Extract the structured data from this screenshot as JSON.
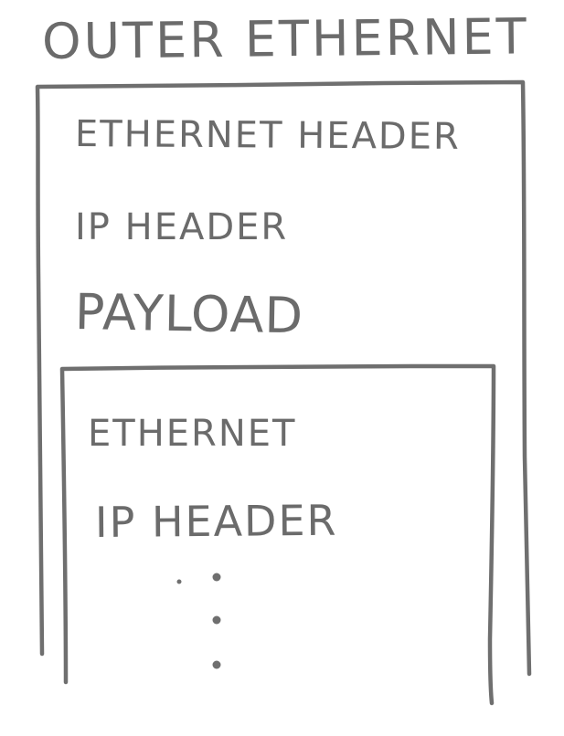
{
  "diagram": {
    "title": "OUTER ETHERNET",
    "outer_packet": {
      "ethernet_header": "ETHERNET HEADER",
      "ip_header": "IP HEADER",
      "payload": "PAYLOAD"
    },
    "inner_packet": {
      "ethernet": "ETHERNET",
      "ip_header": "IP HEADER"
    },
    "colors": {
      "ink": "#6b6b6b",
      "background": "#ffffff"
    }
  }
}
